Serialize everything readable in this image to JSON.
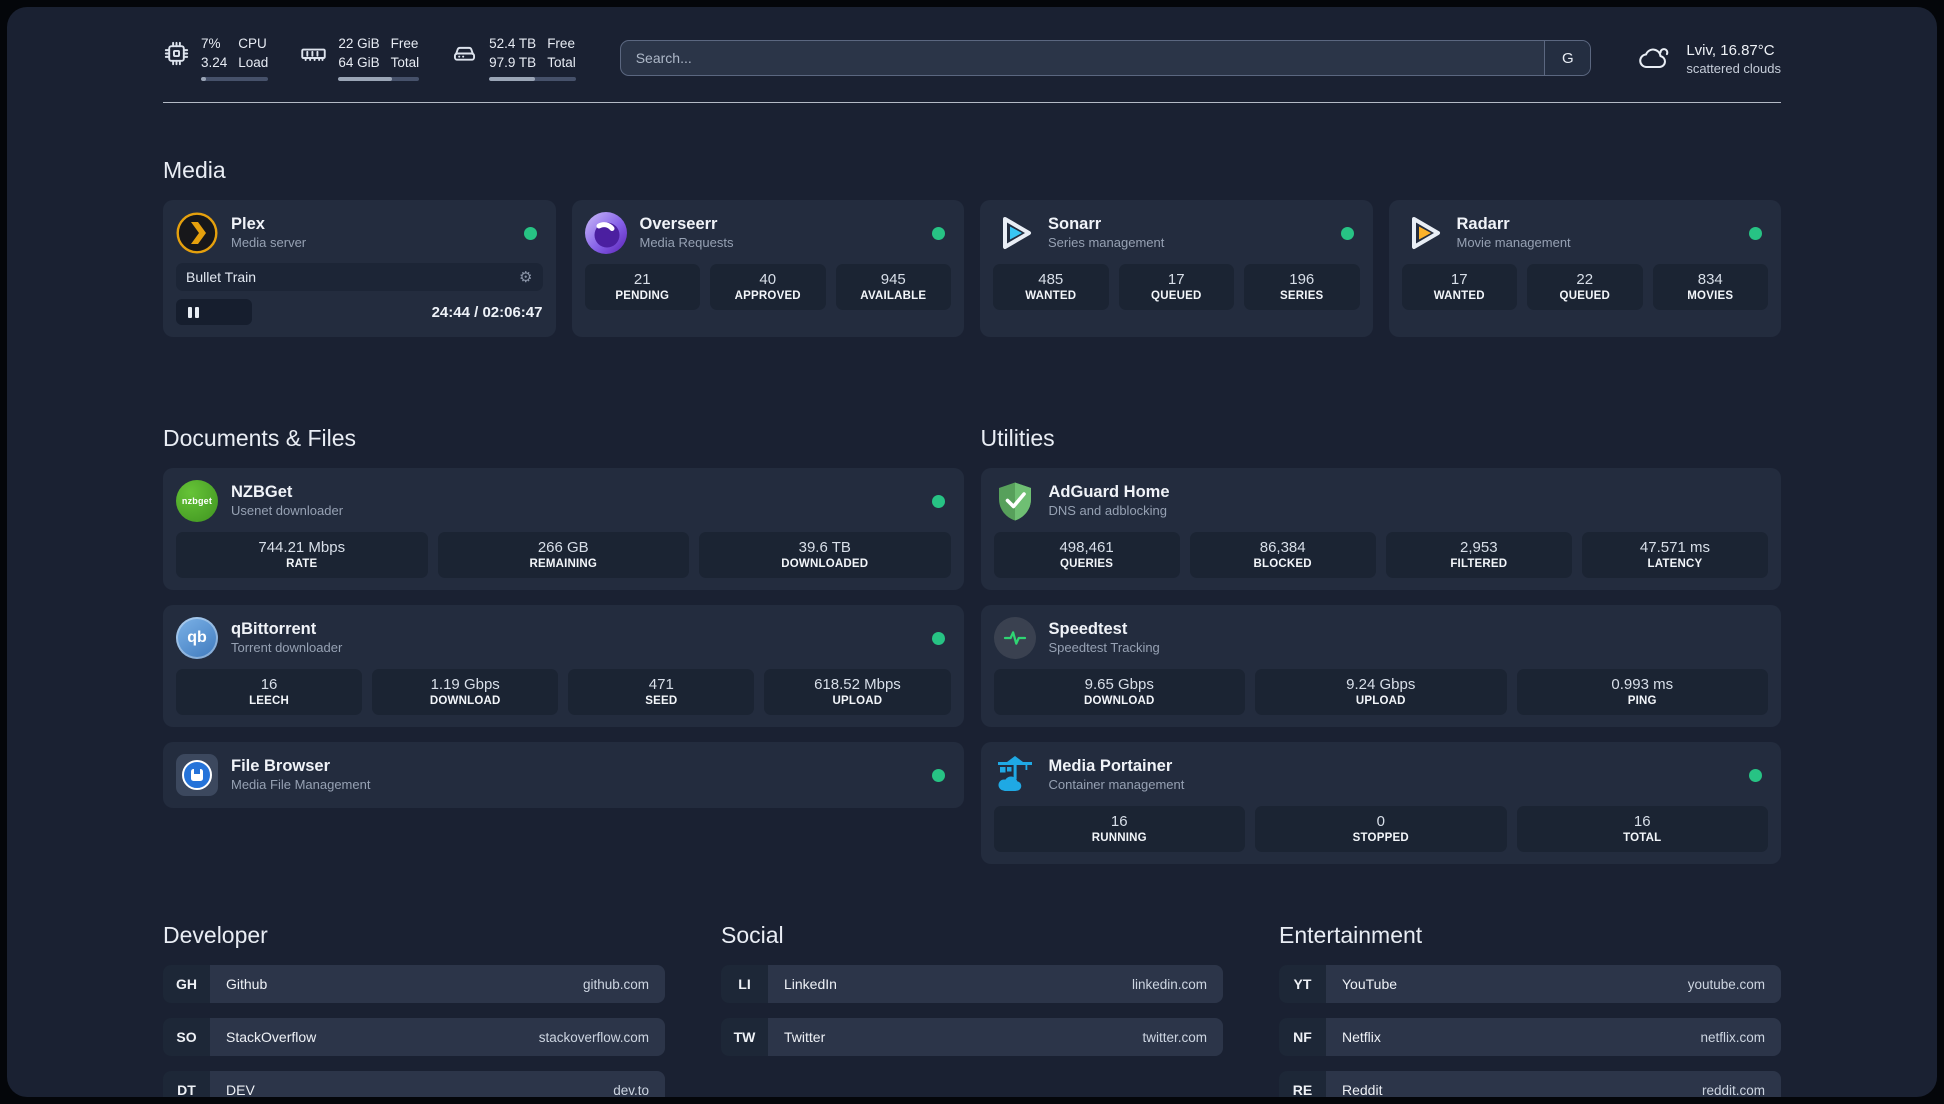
{
  "colors": {
    "status_online": "#27c384",
    "page_bg": "#1a2132",
    "card_bg": "#232c3e",
    "plex_accent": "#e5a00d",
    "sonarr_accent": "#38c6f4",
    "radarr_accent": "#fcb22a",
    "adguard_green": "#6fbf73",
    "portainer_blue": "#1fa9e4",
    "speedtest_green": "#2fd573",
    "progress_fill": "#9aa5b6"
  },
  "header": {
    "cpu": {
      "values": [
        "7%",
        "3.24"
      ],
      "labels": [
        "CPU",
        "Load"
      ],
      "progress": 8
    },
    "memory": {
      "values": [
        "22 GiB",
        "64 GiB"
      ],
      "labels": [
        "Free",
        "Total"
      ],
      "progress": 66
    },
    "disk": {
      "values": [
        "52.4 TB",
        "97.9 TB"
      ],
      "labels": [
        "Free",
        "Total"
      ],
      "progress": 53
    },
    "search": {
      "placeholder": "Search...",
      "engine_label": "G"
    },
    "weather": {
      "location_temp": "Lviv, 16.87°C",
      "condition": "scattered clouds"
    }
  },
  "media": {
    "title": "Media",
    "plex": {
      "name": "Plex",
      "subtitle": "Media server",
      "status": "online",
      "now_playing": "Bullet Train",
      "time": "24:44 / 02:06:47"
    },
    "overseerr": {
      "name": "Overseerr",
      "subtitle": "Media Requests",
      "status": "online",
      "stats": [
        {
          "value": "21",
          "label": "PENDING"
        },
        {
          "value": "40",
          "label": "APPROVED"
        },
        {
          "value": "945",
          "label": "AVAILABLE"
        }
      ]
    },
    "sonarr": {
      "name": "Sonarr",
      "subtitle": "Series management",
      "status": "online",
      "stats": [
        {
          "value": "485",
          "label": "WANTED"
        },
        {
          "value": "17",
          "label": "QUEUED"
        },
        {
          "value": "196",
          "label": "SERIES"
        }
      ]
    },
    "radarr": {
      "name": "Radarr",
      "subtitle": "Movie management",
      "status": "online",
      "stats": [
        {
          "value": "17",
          "label": "WANTED"
        },
        {
          "value": "22",
          "label": "QUEUED"
        },
        {
          "value": "834",
          "label": "MOVIES"
        }
      ]
    }
  },
  "documents": {
    "title": "Documents & Files",
    "nzbget": {
      "name": "NZBGet",
      "subtitle": "Usenet downloader",
      "status": "online",
      "icon_text": "nzbget",
      "stats": [
        {
          "value": "744.21 Mbps",
          "label": "RATE"
        },
        {
          "value": "266 GB",
          "label": "REMAINING"
        },
        {
          "value": "39.6 TB",
          "label": "DOWNLOADED"
        }
      ]
    },
    "qbittorrent": {
      "name": "qBittorrent",
      "subtitle": "Torrent downloader",
      "status": "online",
      "icon_text": "qb",
      "stats": [
        {
          "value": "16",
          "label": "LEECH"
        },
        {
          "value": "1.19 Gbps",
          "label": "DOWNLOAD"
        },
        {
          "value": "471",
          "label": "SEED"
        },
        {
          "value": "618.52 Mbps",
          "label": "UPLOAD"
        }
      ]
    },
    "filebrowser": {
      "name": "File Browser",
      "subtitle": "Media File Management",
      "status": "online"
    }
  },
  "utilities": {
    "title": "Utilities",
    "adguard": {
      "name": "AdGuard Home",
      "subtitle": "DNS and adblocking",
      "stats": [
        {
          "value": "498,461",
          "label": "QUERIES"
        },
        {
          "value": "86,384",
          "label": "BLOCKED"
        },
        {
          "value": "2,953",
          "label": "FILTERED"
        },
        {
          "value": "47.571 ms",
          "label": "LATENCY"
        }
      ]
    },
    "speedtest": {
      "name": "Speedtest",
      "subtitle": "Speedtest Tracking",
      "stats": [
        {
          "value": "9.65 Gbps",
          "label": "DOWNLOAD"
        },
        {
          "value": "9.24 Gbps",
          "label": "UPLOAD"
        },
        {
          "value": "0.993 ms",
          "label": "PING"
        }
      ]
    },
    "portainer": {
      "name": "Media Portainer",
      "subtitle": "Container management",
      "status": "online",
      "stats": [
        {
          "value": "16",
          "label": "RUNNING"
        },
        {
          "value": "0",
          "label": "STOPPED"
        },
        {
          "value": "16",
          "label": "TOTAL"
        }
      ]
    }
  },
  "bookmarks": {
    "developer": {
      "title": "Developer",
      "links": [
        {
          "abbr": "GH",
          "name": "Github",
          "url": "github.com"
        },
        {
          "abbr": "SO",
          "name": "StackOverflow",
          "url": "stackoverflow.com"
        },
        {
          "abbr": "DT",
          "name": "DEV",
          "url": "dev.to"
        }
      ]
    },
    "social": {
      "title": "Social",
      "links": [
        {
          "abbr": "LI",
          "name": "LinkedIn",
          "url": "linkedin.com"
        },
        {
          "abbr": "TW",
          "name": "Twitter",
          "url": "twitter.com"
        }
      ]
    },
    "entertainment": {
      "title": "Entertainment",
      "links": [
        {
          "abbr": "YT",
          "name": "YouTube",
          "url": "youtube.com"
        },
        {
          "abbr": "NF",
          "name": "Netflix",
          "url": "netflix.com"
        },
        {
          "abbr": "RE",
          "name": "Reddit",
          "url": "reddit.com"
        }
      ]
    }
  }
}
